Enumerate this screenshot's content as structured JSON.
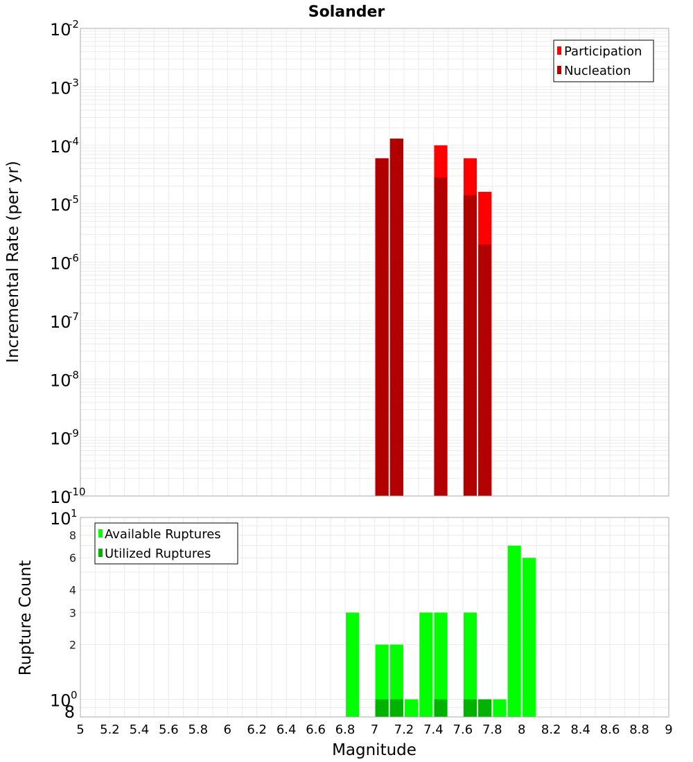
{
  "chart_data": [
    {
      "type": "bar",
      "title": "Solander",
      "ylabel": "Incremental Rate (per yr)",
      "xlabel": "",
      "xlim": [
        5,
        9
      ],
      "ylim": [
        1e-10,
        0.01
      ],
      "y_scale": "log",
      "grid": true,
      "legend": {
        "placement": "top-right"
      },
      "series": [
        {
          "name": "Participation",
          "color": "#ff0000",
          "x": [
            7.05,
            7.15,
            7.45,
            7.65,
            7.75
          ],
          "values": [
            6e-05,
            0.00013,
            0.0001,
            6e-05,
            1.6e-05
          ]
        },
        {
          "name": "Nucleation",
          "color": "#b20000",
          "x": [
            7.05,
            7.15,
            7.45,
            7.65,
            7.75
          ],
          "values": [
            6e-05,
            0.00013,
            2.8e-05,
            1.4e-05,
            2e-06
          ]
        }
      ]
    },
    {
      "type": "bar",
      "title": "",
      "ylabel": "Rupture Count",
      "xlabel": "Magnitude",
      "xlim": [
        5,
        9
      ],
      "ylim": [
        0.8,
        10
      ],
      "y_scale": "log",
      "grid": true,
      "legend": {
        "placement": "top-left"
      },
      "series": [
        {
          "name": "Available Ruptures",
          "color": "#00ff00",
          "x": [
            6.85,
            7.05,
            7.15,
            7.25,
            7.35,
            7.45,
            7.65,
            7.75,
            7.85,
            7.95,
            8.05
          ],
          "values": [
            3,
            2,
            2,
            1,
            3,
            3,
            3,
            1,
            1,
            7,
            6
          ]
        },
        {
          "name": "Utilized Ruptures",
          "color": "#00b200",
          "x": [
            7.05,
            7.15,
            7.45,
            7.65,
            7.75
          ],
          "values": [
            1,
            1,
            1,
            1,
            1
          ]
        }
      ]
    }
  ],
  "ticks": {
    "x": [
      "5",
      "5.2",
      "5.4",
      "5.6",
      "5.8",
      "6",
      "6.2",
      "6.4",
      "6.6",
      "6.8",
      "7",
      "7.2",
      "7.4",
      "7.6",
      "7.8",
      "8",
      "8.2",
      "8.4",
      "8.6",
      "8.8",
      "9"
    ],
    "top_y_base": "10",
    "top_y_exponents": [
      "-2",
      "-3",
      "-4",
      "-5",
      "-6",
      "-7",
      "-8",
      "-9",
      "-10"
    ],
    "bottom_y_decades": [
      {
        "base": "10",
        "exp": "1"
      },
      {
        "base": "10",
        "exp": "0"
      }
    ],
    "bottom_y_minor": [
      "8",
      "6",
      "4",
      "3",
      "2",
      "8"
    ]
  }
}
